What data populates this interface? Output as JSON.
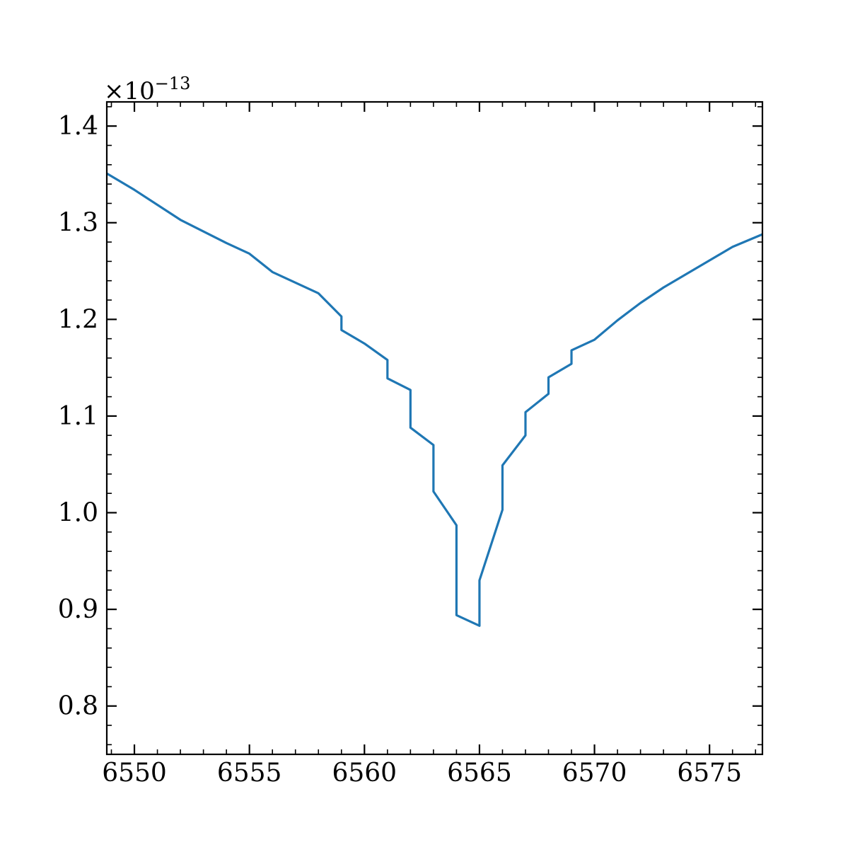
{
  "chart_data": {
    "type": "line",
    "title": "",
    "xlabel": "",
    "ylabel": "",
    "xlim": [
      6548.8,
      6577.3
    ],
    "ylim": [
      0.75,
      1.425
    ],
    "y_scale_factor_label": {
      "base": "×10",
      "exponent": "−13"
    },
    "x_ticks": [
      6550,
      6555,
      6560,
      6565,
      6570,
      6575
    ],
    "x_tick_labels": [
      "6550",
      "6555",
      "6560",
      "6565",
      "6570",
      "6575"
    ],
    "y_ticks": [
      0.8,
      0.9,
      1.0,
      1.1,
      1.2,
      1.3,
      1.4
    ],
    "y_tick_labels": [
      "0.8",
      "0.9",
      "1.0",
      "1.1",
      "1.2",
      "1.3",
      "1.4"
    ],
    "x_minor_step": 1,
    "y_minor_step": 0.02,
    "tick_direction": "in",
    "ticks_on_all_sides": true,
    "grid": false,
    "legend": "none",
    "series": [
      {
        "color": "#1f77b4",
        "points": [
          [
            6548.8,
            1.351
          ],
          [
            6550,
            1.334
          ],
          [
            6552,
            1.303
          ],
          [
            6553,
            1.291
          ],
          [
            6554,
            1.279
          ],
          [
            6555,
            1.268
          ],
          [
            6556,
            1.249
          ],
          [
            6557,
            1.238
          ],
          [
            6558,
            1.227
          ],
          [
            6559,
            1.203
          ],
          [
            6559,
            1.189
          ],
          [
            6560,
            1.175
          ],
          [
            6561,
            1.158
          ],
          [
            6561,
            1.139
          ],
          [
            6562,
            1.127
          ],
          [
            6562,
            1.088
          ],
          [
            6563,
            1.07
          ],
          [
            6563,
            1.022
          ],
          [
            6564,
            0.987
          ],
          [
            6564,
            0.894
          ],
          [
            6565,
            0.883
          ],
          [
            6565,
            0.93
          ],
          [
            6566,
            1.003
          ],
          [
            6566,
            1.049
          ],
          [
            6567,
            1.08
          ],
          [
            6567,
            1.104
          ],
          [
            6568,
            1.123
          ],
          [
            6568,
            1.14
          ],
          [
            6569,
            1.154
          ],
          [
            6569,
            1.168
          ],
          [
            6570,
            1.179
          ],
          [
            6571,
            1.199
          ],
          [
            6572,
            1.217
          ],
          [
            6573,
            1.233
          ],
          [
            6574,
            1.247
          ],
          [
            6575,
            1.261
          ],
          [
            6576,
            1.275
          ],
          [
            6577.3,
            1.288
          ]
        ]
      }
    ]
  }
}
